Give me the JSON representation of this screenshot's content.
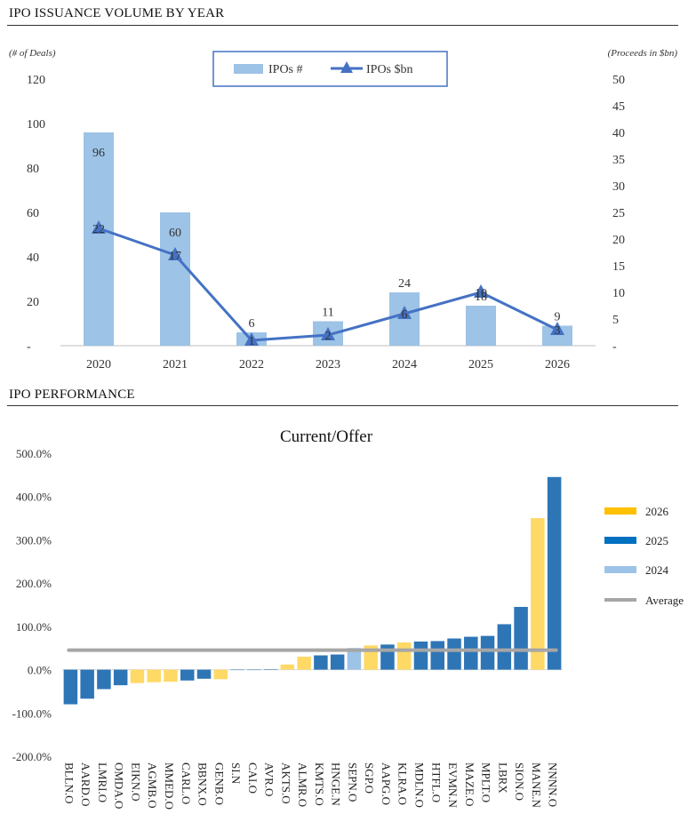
{
  "sections": {
    "volume_title": "IPO ISSUANCE VOLUME BY YEAR",
    "performance_title": "IPO PERFORMANCE"
  },
  "chart_data": [
    {
      "type": "bar",
      "categories": [
        "2020",
        "2021",
        "2022",
        "2023",
        "2024",
        "2025",
        "2026"
      ],
      "series": [
        {
          "name": "IPOs  #",
          "kind": "bar",
          "axis": "left",
          "color": "#9dc3e6",
          "values": [
            96,
            60,
            6,
            11,
            24,
            18,
            9
          ]
        },
        {
          "name": "IPOs  $bn",
          "kind": "line",
          "axis": "right",
          "color": "#4472c4",
          "values": [
            22,
            17,
            1,
            2,
            6,
            10,
            3
          ]
        }
      ],
      "ylabel_left": "(# of Deals)",
      "ylabel_right": "(Proceeds in $bn)",
      "ylim_left": [
        0,
        120
      ],
      "ylim_right": [
        0,
        50
      ],
      "left_ticks": [
        "-",
        "20",
        "40",
        "60",
        "80",
        "100",
        "120"
      ],
      "right_ticks": [
        "-",
        "5",
        "10",
        "15",
        "20",
        "25",
        "30",
        "35",
        "40",
        "45",
        "50"
      ],
      "legend_position": "top-center"
    },
    {
      "type": "bar",
      "title": "Current/Offer",
      "categories": [
        "BLLN.O",
        "AARD.O",
        "LMRI.O",
        "OMDA.O",
        "EIKN.O",
        "AGMB.O",
        "MMED.O",
        "CARL.O",
        "BBNX.O",
        "GENB.O",
        "SI.N",
        "CAI.O",
        "AVR.O",
        "AKTS.O",
        "ALMR.O",
        "KMTS.O",
        "HNGE.N",
        "SEPN.O",
        "SGP.O",
        "AAPG.O",
        "KLRA.O",
        "MDLN.O",
        "HTFL.O",
        "EVMN.N",
        "MAZE.O",
        "MPLT.O",
        "LBRX",
        "SION.O",
        "MANE.N",
        "NNNN.O"
      ],
      "values": [
        -80,
        -67,
        -45,
        -36,
        -31,
        -29,
        -28,
        -25,
        -21,
        -22,
        0,
        0,
        1,
        12,
        30,
        33,
        35,
        50,
        56,
        58,
        63,
        65,
        66,
        72,
        76,
        78,
        105,
        145,
        350,
        445
      ],
      "value_years": [
        "2025",
        "2025",
        "2025",
        "2025",
        "2026",
        "2026",
        "2026",
        "2025",
        "2025",
        "2026",
        "2025",
        "2025",
        "2025",
        "2026",
        "2026",
        "2025",
        "2025",
        "2024",
        "2026",
        "2025",
        "2026",
        "2025",
        "2025",
        "2025",
        "2025",
        "2025",
        "2025",
        "2025",
        "2026",
        "2025"
      ],
      "average": 45,
      "ylim": [
        -200,
        500
      ],
      "y_ticks": [
        "-200.0%",
        "-100.0%",
        "0.0%",
        "100.0%",
        "200.0%",
        "300.0%",
        "400.0%",
        "500.0%"
      ],
      "legend": [
        {
          "label": "2026",
          "color": "#ffc000"
        },
        {
          "label": "2025",
          "color": "#0070c0"
        },
        {
          "label": "2024",
          "color": "#9dc3e6"
        },
        {
          "label": "Average",
          "color": "#a6a6a6"
        }
      ],
      "bar_colors": {
        "2026": "#ffd966",
        "2025": "#2e75b6",
        "2024": "#9dc3e6"
      },
      "legend_position": "right"
    }
  ]
}
